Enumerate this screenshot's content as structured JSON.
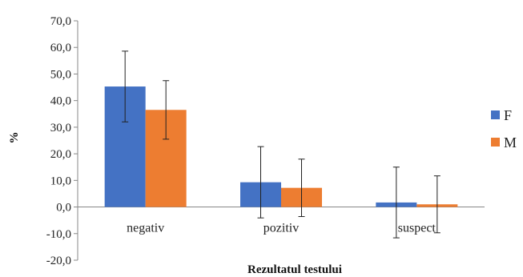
{
  "chart_data": {
    "type": "bar",
    "xlabel": "Rezultatul testului",
    "ylabel": "%",
    "ylim": [
      -20,
      70
    ],
    "yticks": [
      -20,
      -10,
      0,
      10,
      20,
      30,
      40,
      50,
      60,
      70
    ],
    "ytick_labels": [
      "-20,0",
      "-10,0",
      "0,0",
      "10,0",
      "20,0",
      "30,0",
      "40,0",
      "50,0",
      "60,0",
      "70,0"
    ],
    "categories": [
      "negativ",
      "pozitiv",
      "suspect"
    ],
    "series": [
      {
        "name": "F",
        "color": "#4472C4",
        "values": [
          45.3,
          9.3,
          1.7
        ],
        "error": [
          13.3,
          13.4,
          13.3
        ]
      },
      {
        "name": "M",
        "color": "#ED7D31",
        "values": [
          36.5,
          7.2,
          1.0
        ],
        "error": [
          11.0,
          10.8,
          10.7
        ]
      }
    ],
    "legend": "right",
    "grid": false
  }
}
